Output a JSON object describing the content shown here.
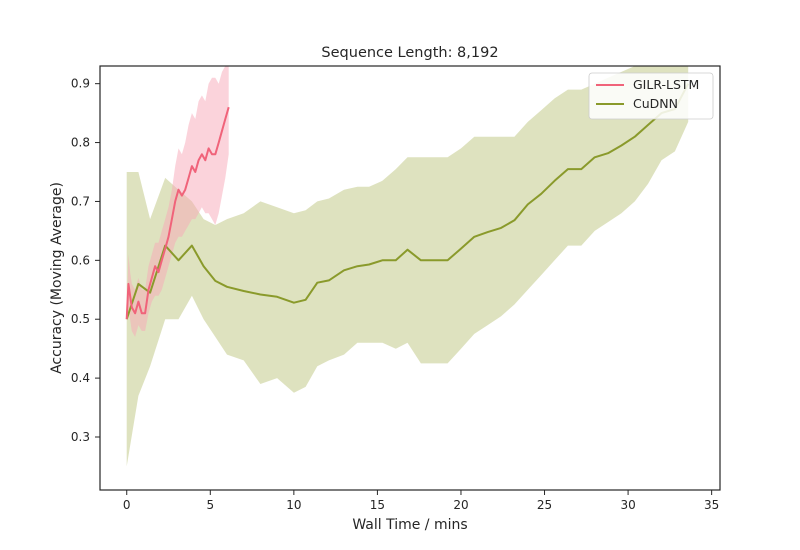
{
  "chart_data": {
    "type": "line",
    "title": "Sequence Length: 8,192",
    "xlabel": "Wall Time / mins",
    "ylabel": "Accuracy (Moving Average)",
    "xlim": [
      -1.6,
      35.5
    ],
    "ylim": [
      0.21,
      0.93
    ],
    "xticks": [
      0,
      5,
      10,
      15,
      20,
      25,
      30,
      35
    ],
    "yticks": [
      0.3,
      0.4,
      0.5,
      0.6,
      0.7,
      0.8,
      0.9
    ],
    "grid": false,
    "legend_position": "top-right",
    "series": [
      {
        "name": "GILR-LSTM",
        "color": "#f0637a",
        "band_color": "#f7a7b8",
        "x": [
          0,
          0.1,
          0.2,
          0.3,
          0.5,
          0.7,
          0.9,
          1.1,
          1.3,
          1.5,
          1.7,
          1.9,
          2.1,
          2.3,
          2.5,
          2.7,
          2.9,
          3.1,
          3.3,
          3.5,
          3.7,
          3.9,
          4.1,
          4.3,
          4.5,
          4.7,
          4.9,
          5.1,
          5.3,
          5.5,
          5.7,
          5.9,
          6.1
        ],
        "y": [
          0.5,
          0.56,
          0.54,
          0.52,
          0.51,
          0.53,
          0.51,
          0.51,
          0.55,
          0.57,
          0.59,
          0.58,
          0.6,
          0.62,
          0.64,
          0.67,
          0.7,
          0.72,
          0.71,
          0.72,
          0.74,
          0.76,
          0.75,
          0.77,
          0.78,
          0.77,
          0.79,
          0.78,
          0.78,
          0.8,
          0.82,
          0.84,
          0.86
        ],
        "lower": [
          0.5,
          0.52,
          0.5,
          0.48,
          0.47,
          0.49,
          0.48,
          0.48,
          0.51,
          0.53,
          0.54,
          0.54,
          0.55,
          0.57,
          0.59,
          0.61,
          0.63,
          0.64,
          0.64,
          0.65,
          0.66,
          0.67,
          0.67,
          0.68,
          0.69,
          0.68,
          0.68,
          0.67,
          0.66,
          0.68,
          0.71,
          0.74,
          0.78
        ],
        "upper": [
          0.5,
          0.61,
          0.58,
          0.56,
          0.55,
          0.57,
          0.55,
          0.55,
          0.59,
          0.61,
          0.63,
          0.63,
          0.65,
          0.67,
          0.69,
          0.72,
          0.76,
          0.79,
          0.78,
          0.8,
          0.83,
          0.85,
          0.84,
          0.87,
          0.88,
          0.87,
          0.9,
          0.91,
          0.91,
          0.9,
          0.92,
          0.93,
          0.94
        ]
      },
      {
        "name": "CuDNN",
        "color": "#8a9a2b",
        "band_color": "#c8cf95",
        "x": [
          0,
          0.7,
          1.4,
          2.3,
          3.1,
          3.9,
          4.6,
          5.3,
          6.0,
          7.0,
          8.0,
          9.0,
          10.0,
          10.7,
          11.4,
          12.1,
          13.0,
          13.8,
          14.5,
          15.3,
          16.1,
          16.8,
          17.6,
          18.4,
          19.2,
          20.0,
          20.8,
          21.6,
          22.4,
          23.2,
          24.0,
          24.8,
          25.6,
          26.4,
          27.2,
          28.0,
          28.8,
          29.6,
          30.4,
          31.2,
          32.0,
          32.8,
          33.6
        ],
        "y": [
          0.5,
          0.56,
          0.545,
          0.625,
          0.6,
          0.625,
          0.59,
          0.565,
          0.555,
          0.548,
          0.542,
          0.538,
          0.528,
          0.533,
          0.562,
          0.566,
          0.583,
          0.59,
          0.593,
          0.6,
          0.6,
          0.618,
          0.6,
          0.6,
          0.6,
          0.62,
          0.64,
          0.648,
          0.655,
          0.668,
          0.695,
          0.713,
          0.735,
          0.755,
          0.755,
          0.775,
          0.782,
          0.795,
          0.81,
          0.83,
          0.85,
          0.857,
          0.9
        ],
        "lower": [
          0.25,
          0.37,
          0.42,
          0.5,
          0.5,
          0.54,
          0.5,
          0.47,
          0.44,
          0.43,
          0.39,
          0.4,
          0.375,
          0.385,
          0.42,
          0.43,
          0.44,
          0.46,
          0.46,
          0.46,
          0.45,
          0.46,
          0.425,
          0.425,
          0.425,
          0.45,
          0.475,
          0.49,
          0.505,
          0.525,
          0.55,
          0.575,
          0.6,
          0.625,
          0.625,
          0.65,
          0.665,
          0.68,
          0.7,
          0.73,
          0.77,
          0.785,
          0.835
        ],
        "upper": [
          0.75,
          0.75,
          0.67,
          0.74,
          0.72,
          0.7,
          0.67,
          0.66,
          0.67,
          0.68,
          0.7,
          0.69,
          0.68,
          0.685,
          0.7,
          0.705,
          0.72,
          0.725,
          0.725,
          0.735,
          0.755,
          0.775,
          0.775,
          0.775,
          0.775,
          0.79,
          0.81,
          0.81,
          0.81,
          0.81,
          0.835,
          0.855,
          0.875,
          0.89,
          0.89,
          0.9,
          0.91,
          0.92,
          0.93,
          0.93,
          0.93,
          0.93,
          0.93
        ]
      }
    ]
  }
}
